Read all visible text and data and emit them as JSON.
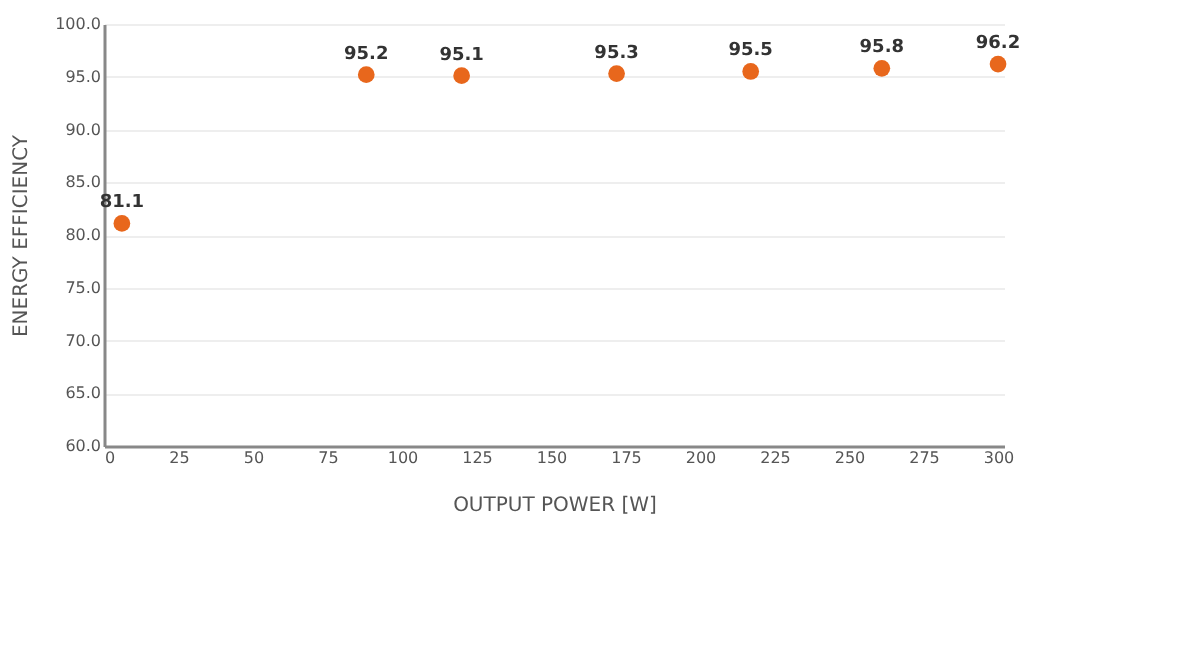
{
  "chart_data": {
    "type": "scatter",
    "xlabel": "OUTPUT POWER [W]",
    "ylabel": "ENERGY EFFICIENCY",
    "x": [
      6,
      88,
      120,
      172,
      217,
      261,
      300
    ],
    "series": [
      {
        "color": "#e8671c",
        "values": [
          81.1,
          95.2,
          95.1,
          95.3,
          95.5,
          95.8,
          96.2
        ]
      }
    ],
    "xlim": [
      0,
      302
    ],
    "xticks": [
      0,
      25,
      50,
      75,
      100,
      125,
      150,
      175,
      200,
      225,
      250,
      275,
      300
    ],
    "ylim": [
      60,
      100
    ],
    "yticks": [
      {
        "value": 60,
        "label": "60.0"
      },
      {
        "value": 65,
        "label": "65.0"
      },
      {
        "value": 70,
        "label": "70.0"
      },
      {
        "value": 75,
        "label": "75.0"
      },
      {
        "value": 80,
        "label": "80.0"
      },
      {
        "value": 85,
        "label": "85.0"
      },
      {
        "value": 90,
        "label": "90.0"
      },
      {
        "value": 95,
        "label": "95.0"
      },
      {
        "value": 100,
        "label": "100.0"
      }
    ],
    "grid": "y",
    "marker": "circle",
    "data_labels": true,
    "legend": false
  }
}
